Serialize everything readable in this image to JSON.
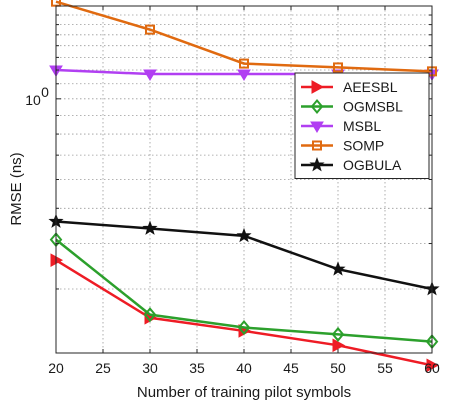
{
  "chart_data": {
    "type": "line",
    "title": "",
    "xlabel": "Number of training pilot symbols",
    "ylabel": "RMSE (ns)",
    "xlim": [
      20,
      60
    ],
    "ylim": [
      0.2,
      1.8
    ],
    "yscale": "log",
    "grid": true,
    "legend_position": "top-right",
    "x_ticks": [
      20,
      25,
      30,
      35,
      40,
      45,
      50,
      55,
      60
    ],
    "x_tick_labels": [
      "20",
      "25",
      "30",
      "35",
      "40",
      "45",
      "50",
      "55",
      "60"
    ],
    "y_tick_labels": [
      {
        "value": 1,
        "base": "10",
        "exp": "0"
      }
    ],
    "x": [
      20,
      30,
      40,
      50,
      60
    ],
    "series": [
      {
        "name": "AEESBL",
        "color": "#ee1c25",
        "marker": "triangle-right",
        "values": [
          0.36,
          0.25,
          0.23,
          0.21,
          0.185
        ]
      },
      {
        "name": "OGMSBL",
        "color": "#2ca02c",
        "marker": "diamond",
        "values": [
          0.41,
          0.255,
          0.235,
          0.225,
          0.215
        ]
      },
      {
        "name": "MSBL",
        "color": "#b13ff2",
        "marker": "triangle-down",
        "values": [
          1.2,
          1.17,
          1.17,
          1.17,
          1.17
        ]
      },
      {
        "name": "SOMP",
        "color": "#e06a10",
        "marker": "square",
        "values": [
          1.85,
          1.55,
          1.25,
          1.22,
          1.19
        ]
      },
      {
        "name": "OGBULA",
        "color": "#111111",
        "marker": "star",
        "values": [
          0.46,
          0.44,
          0.42,
          0.34,
          0.3
        ]
      }
    ]
  }
}
